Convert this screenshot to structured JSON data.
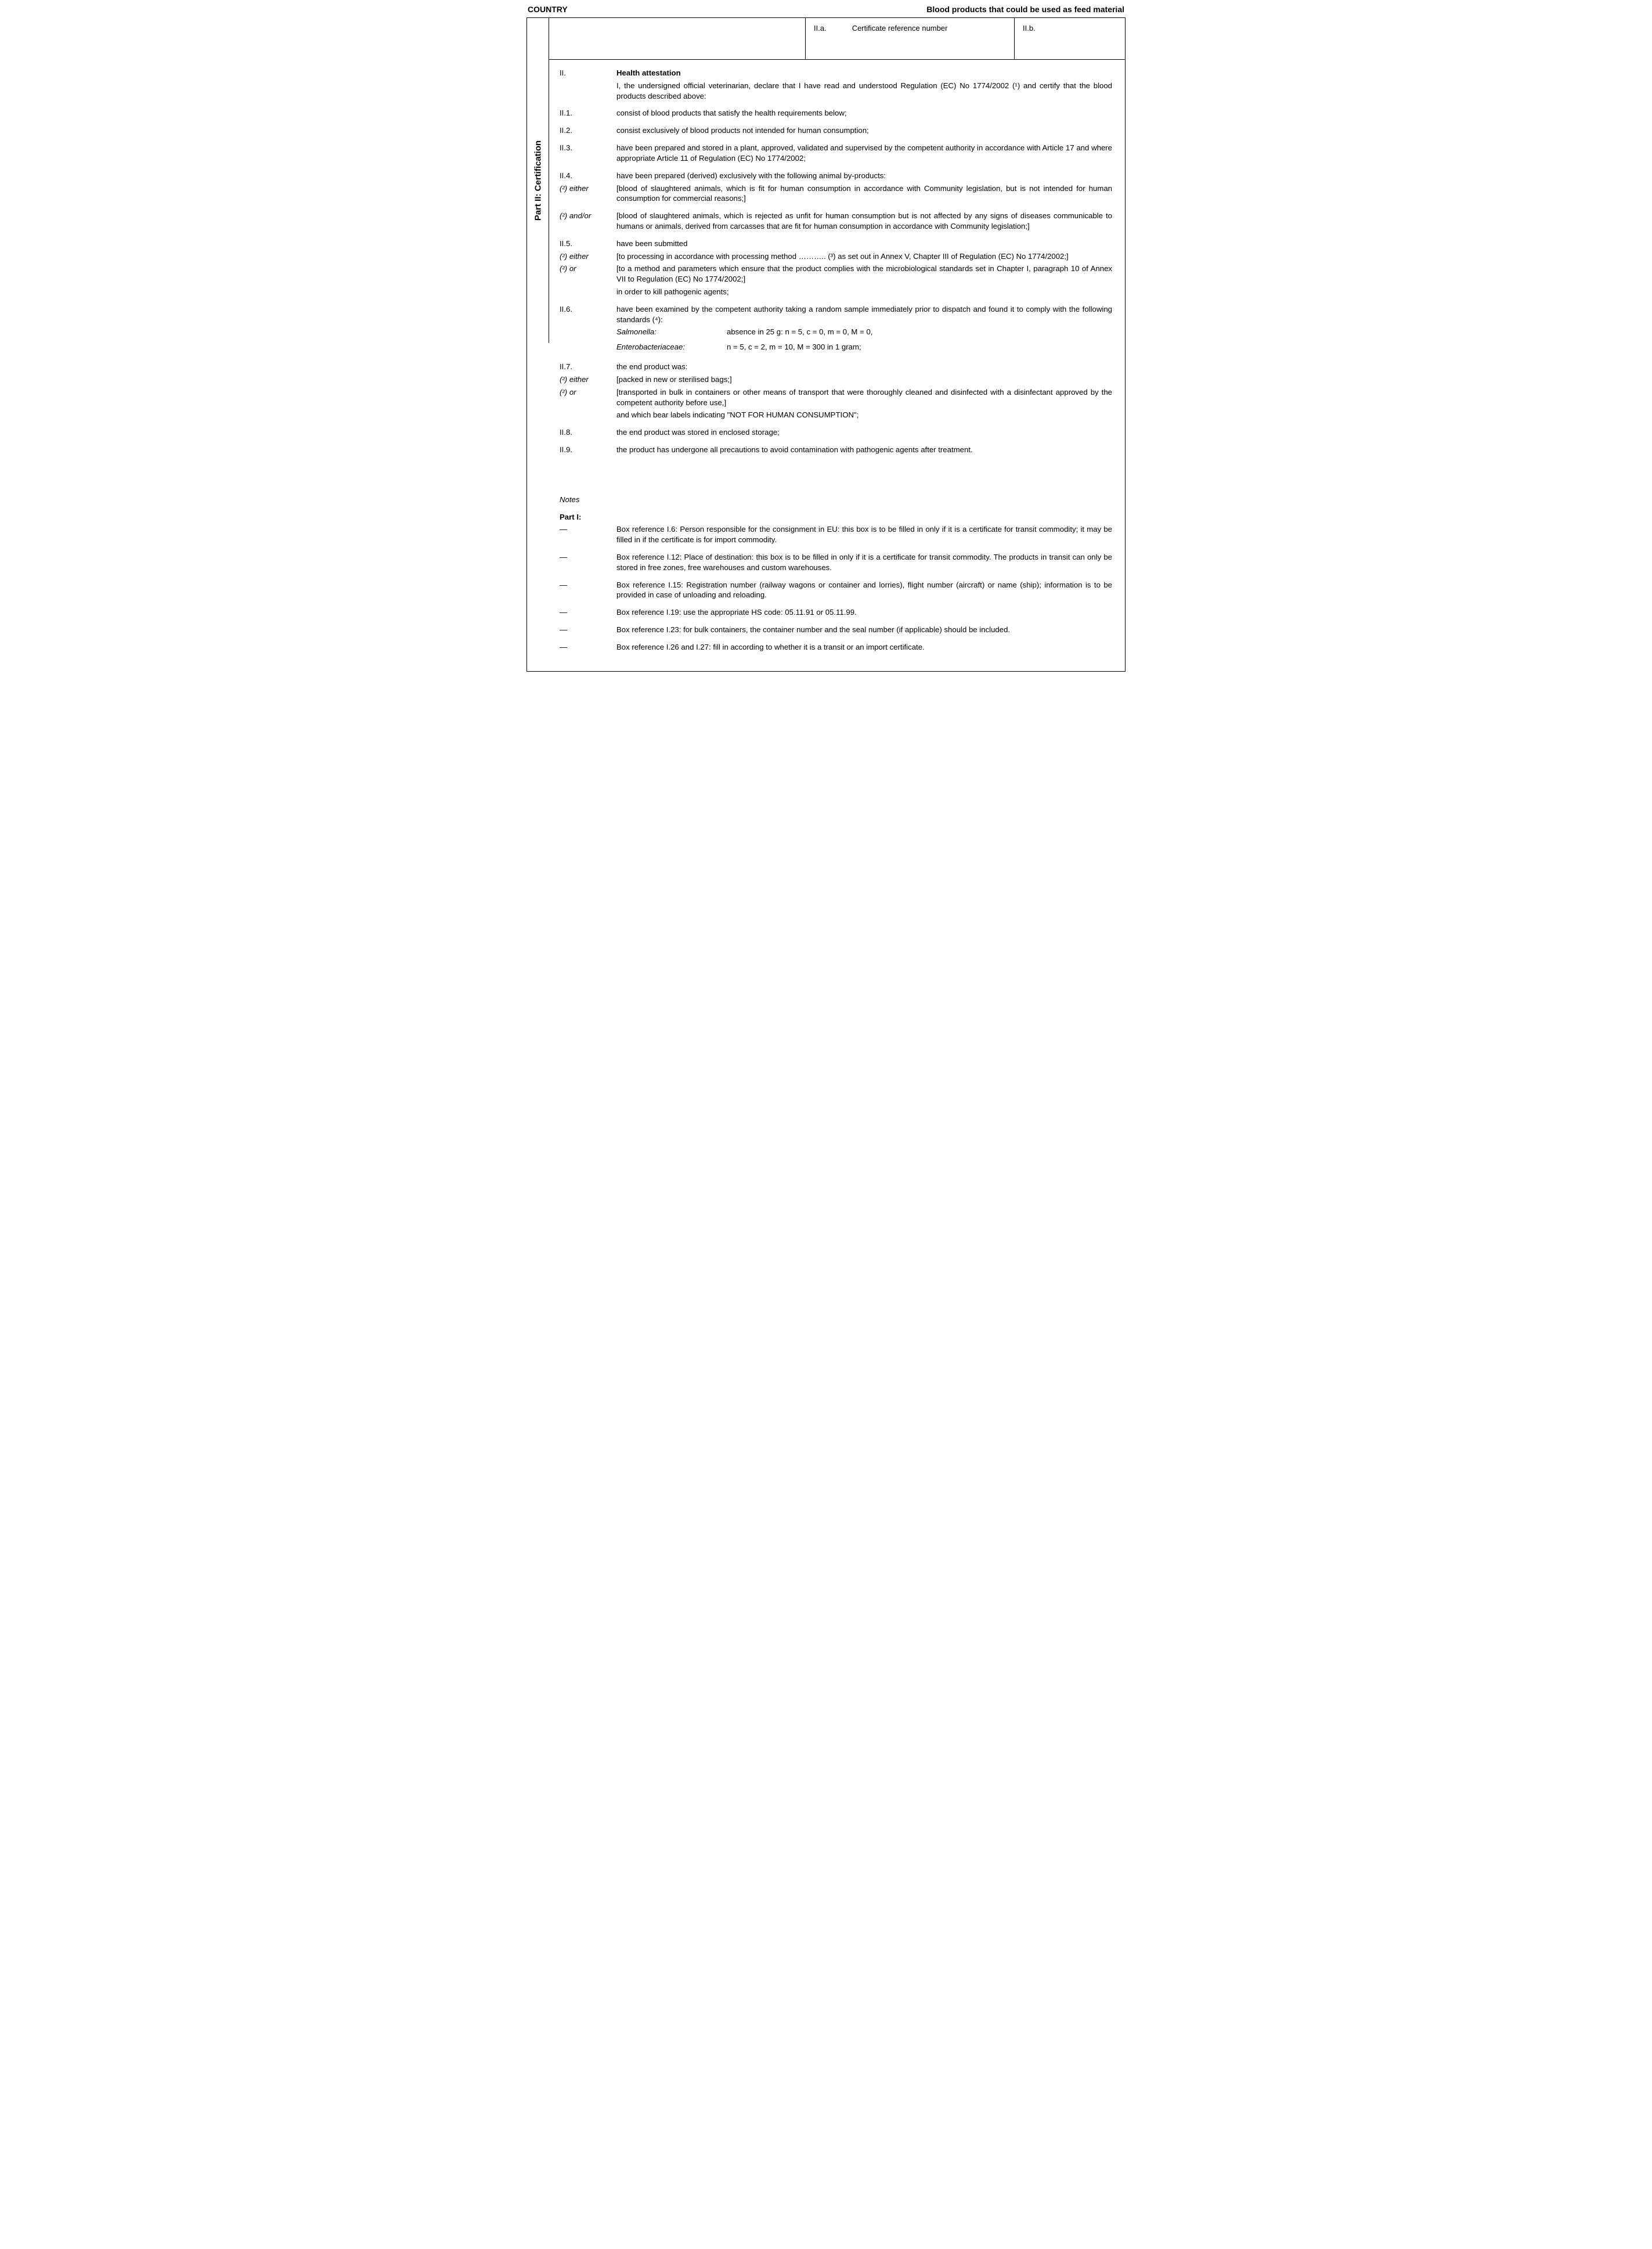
{
  "header": {
    "left": "COUNTRY",
    "right": "Blood products that could be used as feed material"
  },
  "ref": {
    "a_label": "II.a.",
    "a_text": "Certificate reference number",
    "b_label": "II.b."
  },
  "sidebar": "Part II: Certification",
  "section_II": {
    "num": "II.",
    "title": "Health attestation",
    "intro": "I, the undersigned official veterinarian, declare that I have read and understood Regulation (EC) No 1774/2002 (¹) and certify that the blood products described above:"
  },
  "items": {
    "ii1": {
      "num": "II.1.",
      "text": "consist of blood products that satisfy the health requirements below;"
    },
    "ii2": {
      "num": "II.2.",
      "text": "consist exclusively of blood products not intended for human consumption;"
    },
    "ii3": {
      "num": "II.3.",
      "text": "have been prepared and stored in a plant, approved, validated and supervised by the competent authority in accordance with Article 17 and where appropriate Article 11 of Regulation (EC) No 1774/2002;"
    },
    "ii4": {
      "num": "II.4.",
      "text": "have been prepared (derived) exclusively with the following animal by-products:",
      "either_label": "(²) either",
      "either_text": "[blood of slaughtered animals, which is fit for human consumption in accordance with Community legislation, but is not intended for human consumption for commercial reasons;]",
      "andor_label": "(²) and/or",
      "andor_text": "[blood of slaughtered animals, which is rejected as unfit for human consumption but is not affected by any signs of diseases communicable to humans or animals, derived from carcasses that are fit for human consumption in accordance with Community legislation;]"
    },
    "ii5": {
      "num": "II.5.",
      "text": "have been submitted",
      "either_label": "(²) either",
      "either_text": "[to processing in accordance with processing method ……….. (³) as set out in Annex V, Chapter III of Regulation (EC) No 1774/2002;]",
      "or_label": "(²) or",
      "or_text": "[to a method and parameters which ensure that the product complies with the microbiological standards set in Chapter I, paragraph 10 of Annex VII to Regulation (EC) No 1774/2002;]",
      "trailing": "in order to kill pathogenic agents;"
    },
    "ii6": {
      "num": "II.6.",
      "text": "have been examined by the competent authority taking a random sample immediately prior to dispatch and found it to comply with the following standards (⁴):",
      "salmonella_label": "Salmonella:",
      "salmonella_val": "absence in 25 g: n = 5, c = 0, m = 0, M = 0,",
      "entero_label": "Enterobacteriaceae:",
      "entero_val": "n = 5, c = 2, m = 10, M = 300 in 1 gram;"
    },
    "ii7": {
      "num": "II.7.",
      "text": "the end product was:",
      "either_label": "(²) either",
      "either_text": "[packed in new or sterilised bags;]",
      "or_label": "(²) or",
      "or_text": "[transported in bulk in containers or other means of transport that were thoroughly cleaned and disinfected with a disinfectant approved by the competent authority before use,]",
      "trailing": "and which bear labels indicating \"NOT FOR HUMAN CONSUMPTION\";"
    },
    "ii8": {
      "num": "II.8.",
      "text": "the end product was stored in enclosed storage;"
    },
    "ii9": {
      "num": "II.9.",
      "text": "the product has undergone all precautions to avoid contamination with pathogenic agents after treatment."
    }
  },
  "notes": {
    "title": "Notes",
    "part1_title": "Part I:",
    "bullet": "—",
    "n1": "Box reference I.6: Person responsible for the consignment in EU: this box is to be filled in only if it is a certificate for transit commodity; it may be filled in if the certificate is for import commodity.",
    "n2": "Box reference I.12: Place of destination: this box is to be filled in only if it is a certificate for transit commodity. The products in transit can only be stored in free zones, free warehouses and custom warehouses.",
    "n3": "Box reference I.15: Registration number (railway wagons or container and lorries), flight number (aircraft) or name (ship); information is to be provided in case of unloading and reloading.",
    "n4": "Box reference I.19: use the appropriate HS code: 05.11.91 or 05.11.99.",
    "n5": "Box reference I.23: for bulk containers, the container number and the seal number (if applicable) should be included.",
    "n6": "Box reference I.26 and I.27: fill in according to whether it is a transit or an import certificate."
  }
}
